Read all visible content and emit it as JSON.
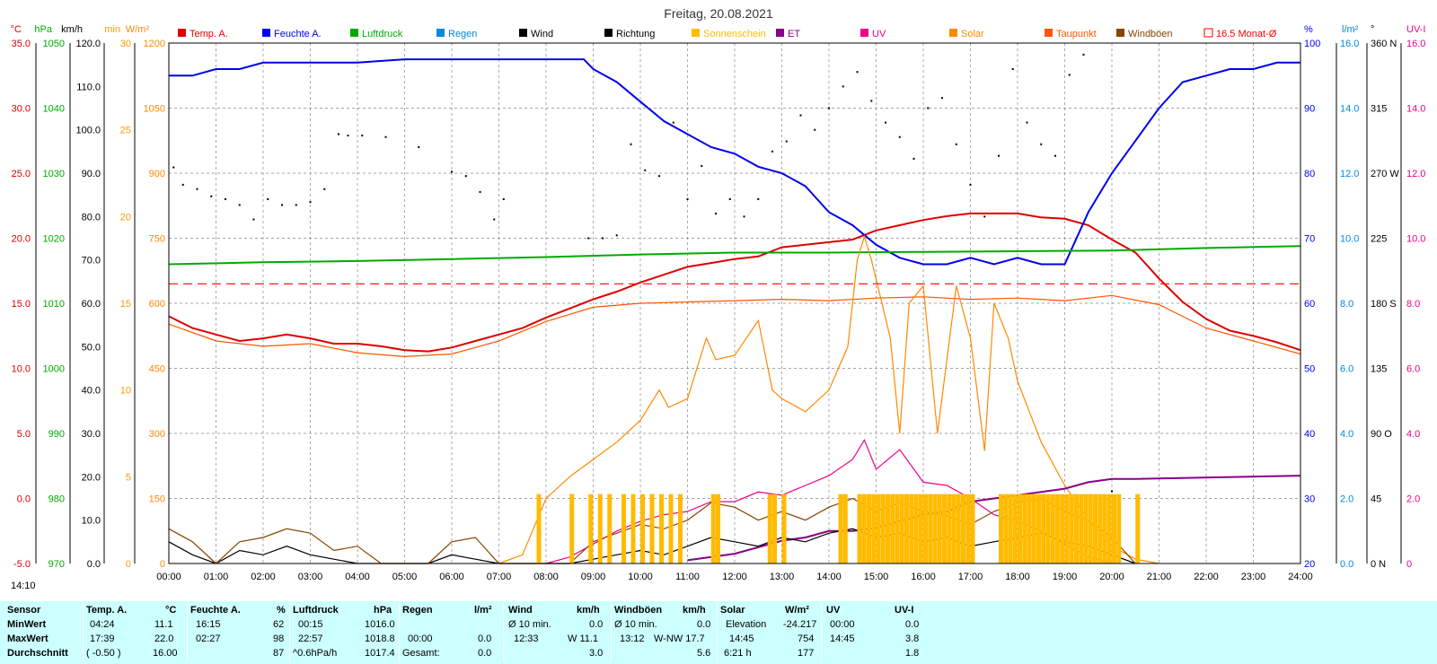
{
  "title": "Freitag, 20.08.2021",
  "corner_time": "14:10",
  "legend": [
    {
      "label": "Temp. A.",
      "color": "#dd0000"
    },
    {
      "label": "Feuchte A.",
      "color": "#0000ee"
    },
    {
      "label": "Luftdruck",
      "color": "#00aa00"
    },
    {
      "label": "Regen",
      "color": "#0088dd"
    },
    {
      "label": "Wind",
      "color": "#000000"
    },
    {
      "label": "Richtung",
      "color": "#000000"
    },
    {
      "label": "Sonnenschein",
      "color": "#ffbb00"
    },
    {
      "label": "ET",
      "color": "#880088"
    },
    {
      "label": "UV",
      "color": "#ee0088"
    },
    {
      "label": "Solar",
      "color": "#ff8800"
    },
    {
      "label": "Taupunkt",
      "color": "#ff5500"
    },
    {
      "label": "Windböen",
      "color": "#884400"
    },
    {
      "label": "16.5 Monat-Ø",
      "color": "#ff0000"
    }
  ],
  "axes": {
    "temp": {
      "unit": "°C",
      "color": "#dd0000",
      "ticks": [
        "35.0",
        "30.0",
        "25.0",
        "20.0",
        "15.0",
        "10.0",
        "5.0",
        "0.0",
        "-5.0"
      ]
    },
    "press": {
      "unit": "hPa",
      "color": "#00aa00",
      "ticks": [
        "1050",
        "1040",
        "1030",
        "1020",
        "1010",
        "1000",
        "990",
        "980",
        "970"
      ]
    },
    "wind": {
      "unit": "km/h",
      "color": "#000000",
      "ticks": [
        "120.0",
        "110.0",
        "100.0",
        "90.0",
        "80.0",
        "70.0",
        "60.0",
        "50.0",
        "40.0",
        "30.0",
        "20.0",
        "10.0",
        "0.0"
      ]
    },
    "sun": {
      "unit": "min",
      "color": "#ff9900",
      "ticks": [
        "30",
        "25",
        "20",
        "15",
        "10",
        "5",
        "0"
      ]
    },
    "solar": {
      "unit": "W/m²",
      "color": "#ff8800",
      "ticks": [
        "1200",
        "1050",
        "900",
        "750",
        "600",
        "450",
        "300",
        "150",
        "0"
      ]
    },
    "hum": {
      "unit": "%",
      "color": "#0000ee",
      "ticks": [
        "100",
        "90",
        "80",
        "70",
        "60",
        "50",
        "40",
        "30",
        "20"
      ]
    },
    "rain": {
      "unit": "l/m²",
      "color": "#0088dd",
      "ticks": [
        "16.0",
        "14.0",
        "12.0",
        "10.0",
        "8.0",
        "6.0",
        "4.0",
        "2.0",
        "0.0"
      ]
    },
    "dir": {
      "unit": "°",
      "color": "#000000",
      "ticks": [
        "360 N",
        "315",
        "270 W",
        "225",
        "180 S",
        "135",
        "90 O",
        "45",
        "0 N"
      ]
    },
    "uv": {
      "unit": "UV-I",
      "color": "#ee0088",
      "ticks": [
        "16.0",
        "14.0",
        "12.0",
        "10.0",
        "8.0",
        "6.0",
        "4.0",
        "2.0",
        "0"
      ]
    }
  },
  "x_ticks": [
    "00:00",
    "01:00",
    "02:00",
    "03:00",
    "04:00",
    "05:00",
    "06:00",
    "07:00",
    "08:00",
    "09:00",
    "10:00",
    "11:00",
    "12:00",
    "13:00",
    "14:00",
    "15:00",
    "16:00",
    "17:00",
    "18:00",
    "19:00",
    "20:00",
    "21:00",
    "22:00",
    "23:00",
    "24:00"
  ],
  "chart_data": {
    "type": "line",
    "title": "Freitag, 20.08.2021",
    "x_unit": "hours",
    "x_range": [
      0,
      24
    ],
    "grid": true,
    "legend_position": "top",
    "series": [
      {
        "name": "Temp. A.",
        "axis": "temp",
        "color": "#dd0000",
        "x": [
          0,
          0.5,
          1,
          1.5,
          2,
          2.5,
          3,
          3.5,
          4,
          4.5,
          5,
          5.5,
          6,
          6.5,
          7,
          7.5,
          8,
          8.5,
          9,
          9.5,
          10,
          10.5,
          11,
          11.5,
          12,
          12.5,
          13,
          13.5,
          14,
          14.5,
          15,
          15.5,
          16,
          16.5,
          17,
          17.5,
          18,
          18.5,
          19,
          19.5,
          20,
          20.5,
          21,
          21.5,
          22,
          22.5,
          23,
          23.5,
          24
        ],
        "y": [
          14,
          13.1,
          12.6,
          12.1,
          12.3,
          12.6,
          12.3,
          11.9,
          11.9,
          11.7,
          11.4,
          11.3,
          11.6,
          12.1,
          12.6,
          13.1,
          13.9,
          14.6,
          15.3,
          15.9,
          16.6,
          17.2,
          17.8,
          18.1,
          18.4,
          18.6,
          19.3,
          19.5,
          19.7,
          19.9,
          20.6,
          21.0,
          21.4,
          21.7,
          21.9,
          21.9,
          21.9,
          21.6,
          21.5,
          21.0,
          19.9,
          18.9,
          16.9,
          15.1,
          13.8,
          12.9,
          12.5,
          12.0,
          11.4
        ]
      },
      {
        "name": "Taupunkt",
        "axis": "temp",
        "color": "#ff5500",
        "x": [
          0,
          1,
          2,
          3,
          4,
          5,
          6,
          7,
          8,
          9,
          10,
          11,
          12,
          13,
          14,
          15,
          16,
          17,
          18,
          19,
          20,
          21,
          22,
          23,
          24
        ],
        "y": [
          13.4,
          12.1,
          11.7,
          11.9,
          11.2,
          10.9,
          11.1,
          12.1,
          13.6,
          14.7,
          15,
          15.1,
          15.2,
          15.3,
          15.2,
          15.4,
          15.5,
          15.3,
          15.4,
          15.2,
          15.6,
          14.9,
          13.1,
          12.1,
          11.1
        ]
      },
      {
        "name": "Feuchte A.",
        "axis": "hum",
        "color": "#0000ee",
        "x": [
          0,
          0.5,
          1,
          1.5,
          2,
          3,
          4,
          5,
          6,
          7,
          8,
          8.8,
          9,
          9.5,
          10,
          10.5,
          11,
          11.5,
          12,
          12.5,
          13,
          13.5,
          14,
          14.5,
          15,
          15.5,
          16,
          16.5,
          17,
          17.5,
          18,
          18.5,
          19,
          19.5,
          20,
          20.5,
          21,
          21.5,
          22,
          22.5,
          23,
          23.5,
          24
        ],
        "y": [
          95,
          95,
          96,
          96,
          97,
          97,
          97,
          97.5,
          97.5,
          97.5,
          97.5,
          97.5,
          96,
          94,
          91,
          88,
          86,
          84,
          83,
          81,
          80,
          78,
          74,
          72,
          69,
          67,
          66,
          66,
          67,
          66,
          67,
          66,
          66,
          74,
          80,
          85,
          90,
          94,
          95,
          96,
          96,
          97,
          97
        ]
      },
      {
        "name": "Luftdruck",
        "axis": "press",
        "color": "#00aa00",
        "x": [
          0,
          2,
          4,
          6,
          8,
          10,
          12,
          14,
          16,
          18,
          20,
          22,
          24
        ],
        "y": [
          1016.0,
          1016.3,
          1016.5,
          1016.8,
          1017.1,
          1017.5,
          1017.8,
          1017.8,
          1017.9,
          1018.0,
          1018.1,
          1018.5,
          1018.8
        ]
      },
      {
        "name": "Solar",
        "axis": "solar",
        "color": "#ff8800",
        "x": [
          7,
          7.5,
          8,
          8.5,
          9,
          9.5,
          10,
          10.4,
          10.6,
          11,
          11.4,
          11.6,
          12,
          12.5,
          12.8,
          13,
          13.5,
          14,
          14.4,
          14.6,
          14.75,
          14.9,
          15.3,
          15.5,
          15.7,
          16,
          16.3,
          16.7,
          17,
          17.3,
          17.5,
          17.8,
          18,
          18.5,
          19,
          19.5,
          20,
          20.5,
          21
        ],
        "y": [
          0,
          20,
          150,
          200,
          240,
          280,
          330,
          400,
          360,
          380,
          520,
          470,
          480,
          560,
          400,
          380,
          350,
          400,
          500,
          700,
          754,
          700,
          520,
          300,
          600,
          640,
          300,
          640,
          520,
          260,
          600,
          520,
          420,
          280,
          180,
          100,
          40,
          10,
          0
        ]
      },
      {
        "name": "UV",
        "axis": "uv",
        "color": "#ee0088",
        "x": [
          8,
          8.5,
          9,
          9.5,
          10,
          10.5,
          11,
          11.5,
          12,
          12.5,
          13,
          13.5,
          14,
          14.5,
          14.75,
          15,
          15.5,
          16,
          16.5,
          17,
          17.5,
          18,
          18.5,
          19,
          19.5,
          20
        ],
        "y": [
          0,
          0.2,
          0.6,
          1.0,
          1.3,
          1.5,
          1.6,
          1.9,
          1.9,
          2.2,
          2.1,
          2.4,
          2.7,
          3.2,
          3.8,
          2.9,
          3.5,
          2.5,
          2.4,
          2.0,
          1.5,
          1.3,
          1.0,
          0.6,
          0.2,
          0
        ]
      },
      {
        "name": "ET",
        "axis": "uv",
        "color": "#880088",
        "x": [
          11,
          11.5,
          12,
          12.5,
          13,
          13.5,
          14,
          14.5,
          15,
          15.5,
          16,
          16.5,
          17,
          17.5,
          18,
          18.5,
          19,
          19.5,
          20,
          20.5,
          24
        ],
        "y": [
          0.1,
          0.2,
          0.3,
          0.5,
          0.7,
          0.8,
          1.0,
          1.0,
          1.1,
          1.3,
          1.5,
          1.6,
          1.9,
          2.0,
          2.1,
          2.2,
          2.3,
          2.5,
          2.6,
          2.6,
          2.7
        ]
      },
      {
        "name": "Wind",
        "axis": "wind",
        "color": "#000000",
        "x": [
          0,
          0.5,
          1,
          1.5,
          2,
          2.5,
          3,
          3.5,
          4,
          4.5,
          5,
          5.5,
          6,
          6.5,
          7,
          7.5,
          8,
          8.5,
          9,
          9.5,
          10,
          10.5,
          11,
          11.5,
          12,
          12.5,
          13,
          13.5,
          14,
          14.5,
          15,
          15.5,
          16,
          16.5,
          17,
          17.5,
          18,
          18.5,
          19,
          19.5,
          20,
          20.5
        ],
        "y": [
          5,
          2,
          0,
          3,
          2,
          4,
          2,
          1,
          0,
          0,
          0,
          0,
          2,
          1,
          0,
          0,
          0,
          0,
          1,
          2,
          3,
          2,
          4,
          6,
          5,
          4,
          6,
          5,
          7,
          8,
          6,
          7,
          5,
          6,
          4,
          5,
          6,
          7,
          5,
          4,
          2,
          0
        ]
      },
      {
        "name": "Windböen",
        "axis": "wind",
        "color": "#884400",
        "x": [
          0,
          0.5,
          1,
          1.5,
          2,
          2.5,
          3,
          3.5,
          4,
          4.5,
          5,
          5.5,
          6,
          6.5,
          7,
          7.5,
          8,
          8.5,
          9,
          9.5,
          10,
          10.5,
          11,
          11.5,
          12,
          12.5,
          13,
          13.5,
          14,
          14.5,
          15,
          15.5,
          16,
          16.5,
          17,
          17.5,
          18,
          18.5,
          19,
          19.5,
          20,
          20.5
        ],
        "y": [
          8,
          5,
          0,
          5,
          6,
          8,
          7,
          3,
          4,
          0,
          0,
          0,
          5,
          6,
          0,
          0,
          0,
          0,
          5,
          7,
          9,
          8,
          10,
          14,
          13,
          10,
          12,
          10,
          13,
          15,
          12,
          14,
          12,
          11,
          9,
          12,
          14,
          15,
          12,
          10,
          6,
          0
        ]
      },
      {
        "name": "Richtung",
        "axis": "dir",
        "type": "scatter",
        "color": "#000000",
        "x": [
          0.1,
          0.3,
          0.6,
          0.9,
          1.2,
          1.5,
          1.8,
          2.1,
          2.4,
          2.7,
          3.0,
          3.3,
          3.6,
          3.8,
          4.1,
          4.6,
          5.3,
          6.0,
          6.3,
          6.6,
          6.9,
          7.1,
          8.9,
          9.2,
          9.5,
          9.8,
          10.1,
          10.4,
          10.7,
          11.0,
          11.3,
          11.6,
          11.9,
          12.2,
          12.5,
          12.8,
          13.1,
          13.4,
          13.7,
          14.0,
          14.3,
          14.6,
          14.9,
          15.2,
          15.5,
          15.8,
          16.1,
          16.4,
          16.7,
          17.0,
          17.3,
          17.6,
          17.9,
          18.2,
          18.5,
          18.8,
          19.1,
          19.4,
          20.0
        ],
        "y": [
          274,
          262,
          259,
          254,
          252,
          248,
          238,
          252,
          248,
          248,
          250,
          259,
          297,
          296,
          296,
          295,
          288,
          271,
          268,
          257,
          238,
          252,
          225,
          225,
          227,
          290,
          272,
          268,
          305,
          252,
          275,
          242,
          252,
          240,
          252,
          285,
          292,
          310,
          300,
          315,
          330,
          340,
          320,
          305,
          295,
          280,
          315,
          322,
          290,
          262,
          240,
          282,
          342,
          305,
          290,
          282,
          338,
          352,
          50
        ]
      },
      {
        "name": "16.5 Monat-Ø",
        "axis": "temp",
        "style": "dashed",
        "color": "#ff0000",
        "x": [
          0,
          24
        ],
        "y": [
          16.5,
          16.5
        ]
      },
      {
        "name": "Sonnenschein",
        "axis": "sun",
        "type": "bar",
        "color": "#ffbb00",
        "x": [
          7.8,
          8.5,
          8.9,
          9.1,
          9.3,
          9.6,
          9.8,
          10.0,
          10.2,
          10.4,
          10.6,
          10.8,
          11.5,
          11.6,
          12.7,
          12.8,
          13.0,
          14.2,
          14.3,
          14.6,
          14.7,
          14.8,
          14.9,
          15.0,
          15.1,
          15.2,
          15.3,
          15.4,
          15.5,
          15.6,
          15.7,
          15.8,
          15.9,
          16.0,
          16.1,
          16.2,
          16.3,
          16.4,
          16.5,
          16.6,
          16.7,
          16.8,
          16.9,
          17.0,
          17.6,
          17.7,
          17.8,
          17.9,
          18.0,
          18.1,
          18.2,
          18.3,
          18.4,
          18.5,
          18.6,
          18.7,
          18.8,
          18.9,
          19.0,
          19.1,
          19.2,
          19.3,
          19.4,
          19.5,
          19.6,
          19.7,
          19.8,
          19.9,
          20.0,
          20.1,
          20.5
        ],
        "y": [
          4,
          4,
          4,
          4,
          4,
          4,
          4,
          4,
          4,
          4,
          4,
          4,
          4,
          4,
          4,
          4,
          4,
          4,
          4,
          4,
          4,
          4,
          4,
          4,
          4,
          4,
          4,
          4,
          4,
          4,
          4,
          4,
          4,
          4,
          4,
          4,
          4,
          4,
          4,
          4,
          4,
          4,
          4,
          4,
          4,
          4,
          4,
          4,
          4,
          4,
          4,
          4,
          4,
          4,
          4,
          4,
          4,
          4,
          4,
          4,
          4,
          4,
          4,
          4,
          4,
          4,
          4,
          4,
          4,
          4,
          4
        ]
      }
    ]
  },
  "stats": {
    "sensor": {
      "header": "Sensor",
      "min": "MinWert",
      "max": "MaxWert",
      "avg": "Durchschnitt"
    },
    "temp": {
      "header": "Temp. A.",
      "unit": "°C",
      "min_time": "04:24",
      "min_val": "11.1",
      "max_time": "17:39",
      "max_val": "22.0",
      "avg_note": "( -0.50 )",
      "avg_val": "16.00"
    },
    "hum": {
      "header": "Feuchte A.",
      "unit": "%",
      "min_time": "16:15",
      "min_val": "62",
      "max_time": "02:27",
      "max_val": "98",
      "avg_val": "87"
    },
    "press": {
      "header": "Luftdruck",
      "unit": "hPa",
      "min_time": "00:15",
      "min_val": "1016.0",
      "max_time": "22:57",
      "max_val": "1018.8",
      "avg_note": "^0.6hPa/h",
      "avg_val": "1017.4"
    },
    "rain": {
      "header": "Regen",
      "unit": "l/m²",
      "max_time": "00:00",
      "max_val": "0.0",
      "avg_label": "Gesamt:",
      "avg_val": "0.0"
    },
    "wind": {
      "header": "Wind",
      "unit": "km/h",
      "min_label": "Ø 10 min.",
      "min_val": "0.0",
      "max_time": "12:33",
      "max_val": "W 11.1",
      "avg_val": "3.0"
    },
    "gust": {
      "header": "Windböen",
      "unit": "km/h",
      "min_label": "Ø 10 min.",
      "min_val": "0.0",
      "max_time": "13:12",
      "max_val": "W-NW 17.7",
      "avg_val": "5.6"
    },
    "solar": {
      "header": "Solar",
      "unit": "W/m²",
      "min_label": "Elevation",
      "min_val": "-24.217",
      "max_time": "14:45",
      "max_val": "754",
      "avg_label": "6:21 h",
      "avg_val": "177"
    },
    "uv": {
      "header": "UV",
      "unit": "UV-I",
      "min_time": "00:00",
      "min_val": "0.0",
      "max_time": "14:45",
      "max_val": "3.8",
      "avg_val": "1.8"
    }
  }
}
